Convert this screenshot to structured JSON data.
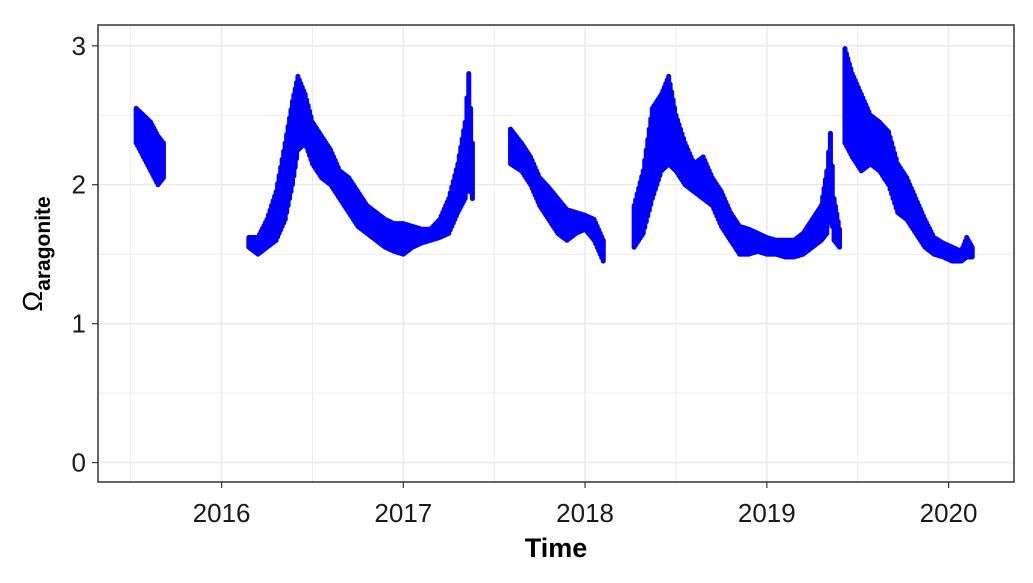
{
  "chart_data": {
    "type": "scatter",
    "title": "",
    "xlabel": "Time",
    "ylabel": "Ω",
    "ylabel_subscript": "aragonite",
    "xlim": [
      2015.32,
      2020.36
    ],
    "ylim": [
      -0.14,
      3.15
    ],
    "x_ticks": [
      2016,
      2017,
      2018,
      2019,
      2020
    ],
    "x_tick_labels": [
      "2016",
      "2017",
      "2018",
      "2019",
      "2020"
    ],
    "y_ticks": [
      0,
      1,
      2,
      3
    ],
    "y_tick_labels": [
      "0",
      "1",
      "2",
      "3"
    ],
    "grid": true,
    "legend": "none",
    "point_color": "#0000ff",
    "series_format": "[decimal_year, min_value, max_value]",
    "segments": [
      [
        [
          2015.53,
          2.3,
          2.55
        ],
        [
          2015.57,
          2.2,
          2.5
        ],
        [
          2015.61,
          2.1,
          2.45
        ],
        [
          2015.65,
          2.0,
          2.35
        ],
        [
          2015.68,
          2.05,
          2.3
        ]
      ],
      [
        [
          2016.15,
          1.55,
          1.62
        ],
        [
          2016.2,
          1.5,
          1.62
        ],
        [
          2016.25,
          1.55,
          1.75
        ],
        [
          2016.3,
          1.6,
          1.95
        ],
        [
          2016.35,
          1.75,
          2.3
        ],
        [
          2016.39,
          2.0,
          2.6
        ],
        [
          2016.42,
          2.25,
          2.78
        ],
        [
          2016.46,
          2.3,
          2.65
        ],
        [
          2016.5,
          2.15,
          2.45
        ],
        [
          2016.55,
          2.05,
          2.35
        ],
        [
          2016.6,
          2.0,
          2.25
        ],
        [
          2016.65,
          1.9,
          2.1
        ],
        [
          2016.7,
          1.8,
          2.05
        ],
        [
          2016.75,
          1.7,
          1.95
        ],
        [
          2016.8,
          1.65,
          1.85
        ],
        [
          2016.85,
          1.6,
          1.8
        ],
        [
          2016.9,
          1.55,
          1.75
        ],
        [
          2016.95,
          1.52,
          1.72
        ],
        [
          2017.0,
          1.5,
          1.72
        ],
        [
          2017.05,
          1.55,
          1.7
        ],
        [
          2017.1,
          1.58,
          1.68
        ],
        [
          2017.15,
          1.6,
          1.68
        ],
        [
          2017.2,
          1.62,
          1.75
        ],
        [
          2017.25,
          1.65,
          1.9
        ],
        [
          2017.3,
          1.8,
          2.15
        ],
        [
          2017.34,
          1.9,
          2.45
        ],
        [
          2017.36,
          2.0,
          2.8
        ],
        [
          2017.38,
          1.9,
          2.3
        ]
      ],
      [
        [
          2017.59,
          2.15,
          2.4
        ],
        [
          2017.65,
          2.1,
          2.3
        ],
        [
          2017.7,
          2.0,
          2.2
        ],
        [
          2017.75,
          1.85,
          2.05
        ],
        [
          2017.8,
          1.75,
          1.98
        ],
        [
          2017.85,
          1.65,
          1.9
        ],
        [
          2017.9,
          1.6,
          1.82
        ],
        [
          2017.95,
          1.65,
          1.8
        ],
        [
          2018.0,
          1.68,
          1.78
        ],
        [
          2018.05,
          1.6,
          1.75
        ],
        [
          2018.1,
          1.45,
          1.6
        ]
      ],
      [
        [
          2018.27,
          1.55,
          1.85
        ],
        [
          2018.32,
          1.65,
          2.1
        ],
        [
          2018.37,
          1.9,
          2.55
        ],
        [
          2018.42,
          2.1,
          2.65
        ],
        [
          2018.46,
          2.15,
          2.78
        ],
        [
          2018.5,
          2.1,
          2.5
        ],
        [
          2018.55,
          2.0,
          2.3
        ],
        [
          2018.6,
          1.95,
          2.15
        ],
        [
          2018.65,
          1.9,
          2.2
        ],
        [
          2018.7,
          1.85,
          2.05
        ],
        [
          2018.75,
          1.7,
          1.95
        ],
        [
          2018.8,
          1.6,
          1.8
        ],
        [
          2018.85,
          1.5,
          1.7
        ],
        [
          2018.9,
          1.5,
          1.68
        ],
        [
          2018.95,
          1.52,
          1.65
        ],
        [
          2019.0,
          1.5,
          1.62
        ],
        [
          2019.05,
          1.5,
          1.6
        ],
        [
          2019.1,
          1.48,
          1.6
        ],
        [
          2019.15,
          1.48,
          1.6
        ],
        [
          2019.2,
          1.5,
          1.65
        ],
        [
          2019.25,
          1.55,
          1.75
        ],
        [
          2019.3,
          1.6,
          1.85
        ],
        [
          2019.33,
          1.65,
          2.1
        ],
        [
          2019.35,
          1.8,
          2.37
        ],
        [
          2019.37,
          1.6,
          1.9
        ],
        [
          2019.4,
          1.55,
          1.68
        ]
      ],
      [
        [
          2019.43,
          2.3,
          2.98
        ],
        [
          2019.47,
          2.2,
          2.8
        ],
        [
          2019.52,
          2.1,
          2.65
        ],
        [
          2019.57,
          2.15,
          2.5
        ],
        [
          2019.62,
          2.1,
          2.45
        ],
        [
          2019.67,
          2.0,
          2.38
        ],
        [
          2019.72,
          1.8,
          2.15
        ],
        [
          2019.77,
          1.75,
          2.05
        ],
        [
          2019.82,
          1.65,
          1.9
        ],
        [
          2019.87,
          1.55,
          1.75
        ],
        [
          2019.92,
          1.5,
          1.62
        ],
        [
          2019.97,
          1.48,
          1.58
        ],
        [
          2020.02,
          1.45,
          1.55
        ],
        [
          2020.07,
          1.45,
          1.52
        ],
        [
          2020.1,
          1.48,
          1.62
        ],
        [
          2020.13,
          1.48,
          1.55
        ]
      ]
    ]
  }
}
